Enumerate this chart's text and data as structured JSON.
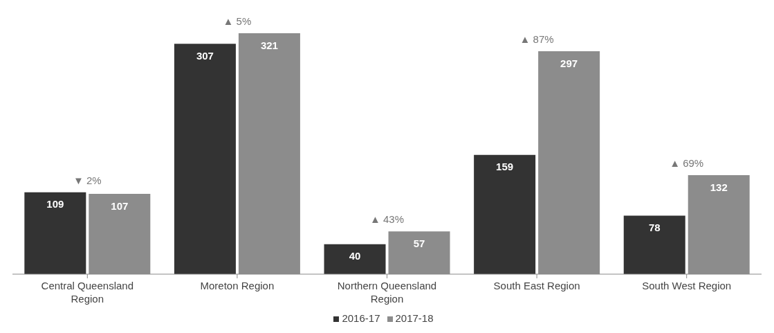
{
  "chart_data": {
    "type": "bar",
    "categories": [
      "Central Queensland Region",
      "Moreton Region",
      "Northern Queensland Region",
      "South East Region",
      "South West Region"
    ],
    "series": [
      {
        "name": "2016-17",
        "color": "#333333",
        "values": [
          109,
          307,
          40,
          159,
          78
        ]
      },
      {
        "name": "2017-18",
        "color": "#8c8c8c",
        "values": [
          107,
          321,
          57,
          297,
          132
        ]
      }
    ],
    "data_labels": true,
    "legend": "bottom",
    "marker": "square",
    "grid": false,
    "annotations": [
      "▼ 2%",
      "▲ 5%",
      "▲ 43%",
      "▲ 87%",
      "▲ 69%"
    ]
  }
}
